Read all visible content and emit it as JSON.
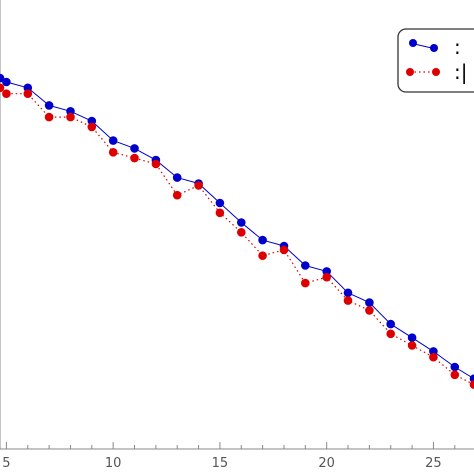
{
  "chart_data": {
    "type": "line",
    "title": "",
    "xlabel": "",
    "ylabel": "",
    "xlim": [
      4.7,
      26.9
    ],
    "ylim": [
      0,
      23
    ],
    "x_ticks": [
      5,
      10,
      15,
      20,
      25
    ],
    "x_tick_labels": [
      "5",
      "10",
      "15",
      "20",
      "25"
    ],
    "grid": false,
    "legend_position": "top-right",
    "series": [
      {
        "label": ":",
        "color": "#0000cc",
        "style": "solid",
        "x": [
          4.7,
          5,
          6,
          7,
          8,
          9,
          10,
          11,
          12,
          13,
          14,
          15,
          16,
          17,
          18,
          19,
          20,
          21,
          22,
          23,
          24,
          25,
          26,
          26.9
        ],
        "values": [
          19.0,
          18.8,
          18.5,
          17.6,
          17.3,
          16.8,
          15.8,
          15.4,
          14.8,
          13.9,
          13.6,
          12.6,
          11.6,
          10.7,
          10.4,
          9.4,
          9.1,
          8.0,
          7.5,
          6.4,
          5.7,
          5.0,
          4.2,
          3.6
        ]
      },
      {
        "label": ":|",
        "color": "#dd0000",
        "style": "dotted",
        "x": [
          4.7,
          5,
          6,
          7,
          8,
          9,
          10,
          11,
          12,
          13,
          14,
          15,
          16,
          17,
          18,
          19,
          20,
          21,
          22,
          23,
          24,
          25,
          26,
          26.9
        ],
        "values": [
          18.5,
          18.2,
          18.2,
          17.0,
          17.0,
          16.5,
          15.2,
          14.9,
          14.6,
          13.0,
          13.5,
          12.1,
          11.1,
          9.9,
          10.2,
          8.5,
          8.8,
          7.6,
          7.1,
          5.9,
          5.3,
          4.7,
          3.8,
          3.3
        ]
      }
    ]
  }
}
